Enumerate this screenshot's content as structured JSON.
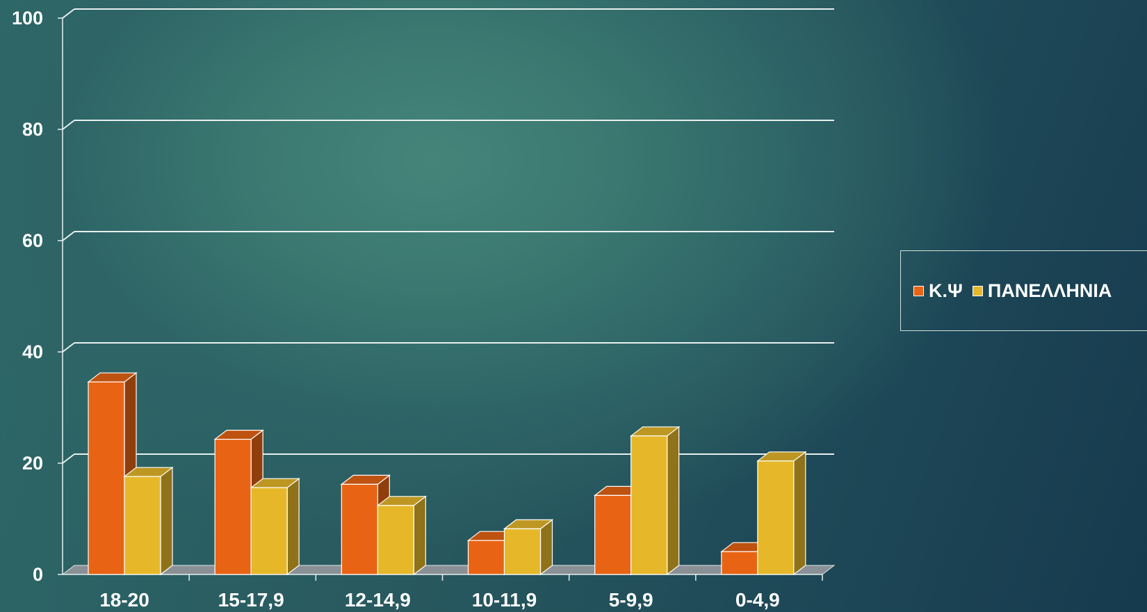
{
  "chart_data": {
    "type": "bar",
    "style": "3d-clustered-column",
    "title": "",
    "xlabel": "",
    "ylabel": "",
    "ylim": [
      0,
      100
    ],
    "yticks": [
      "0",
      "20",
      "40",
      "60",
      "80",
      "100"
    ],
    "grid": true,
    "legend_position": "right",
    "categories": [
      "18-20",
      "15-17,9",
      "12-14,9",
      "10-11,9",
      "5-9,9",
      "0-4,9"
    ],
    "series": [
      {
        "name": "Κ.Ψ",
        "color": "#e86414",
        "values": [
          34.6,
          24.3,
          16.2,
          6.1,
          14.2,
          4.1
        ]
      },
      {
        "name": "ΠΑΝΕΛΛΗΝΙΑ",
        "color": "#e6b829",
        "values": [
          17.6,
          15.6,
          12.4,
          8.2,
          24.9,
          20.4
        ]
      }
    ]
  }
}
